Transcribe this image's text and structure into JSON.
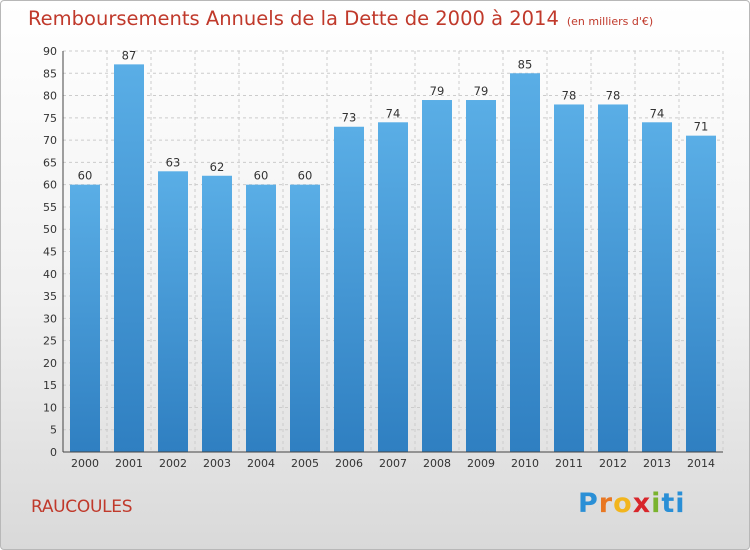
{
  "title": "Remboursements Annuels de la Dette de 2000 à 2014",
  "subtitle": "(en milliers d'€)",
  "commune": "RAUCOULES",
  "logo": {
    "letters": [
      "P",
      "r",
      "o",
      "x",
      "i",
      "ti"
    ],
    "colors": [
      "#2a8fd6",
      "#e87722",
      "#f2b51d",
      "#d8262b",
      "#7ab32e",
      "#2a8fd6"
    ]
  },
  "colors": {
    "bar_light": "#5aaee6",
    "bar_dark": "#2f7fc1",
    "title": "#c0392b",
    "grid": "#cccccc"
  },
  "chart_data": {
    "type": "bar",
    "title": "Remboursements Annuels de la Dette de 2000 à 2014",
    "subtitle": "(en milliers d'€)",
    "xlabel": "",
    "ylabel": "",
    "categories": [
      "2000",
      "2001",
      "2002",
      "2003",
      "2004",
      "2005",
      "2006",
      "2007",
      "2008",
      "2009",
      "2010",
      "2011",
      "2012",
      "2013",
      "2014"
    ],
    "values": [
      60,
      87,
      63,
      62,
      60,
      60,
      73,
      74,
      79,
      79,
      85,
      78,
      78,
      74,
      71
    ],
    "ylim": [
      0,
      90
    ],
    "yticks": [
      0,
      5,
      10,
      15,
      20,
      25,
      30,
      35,
      40,
      45,
      50,
      55,
      60,
      65,
      70,
      75,
      80,
      85,
      90
    ],
    "grid": true,
    "data_labels": true
  }
}
